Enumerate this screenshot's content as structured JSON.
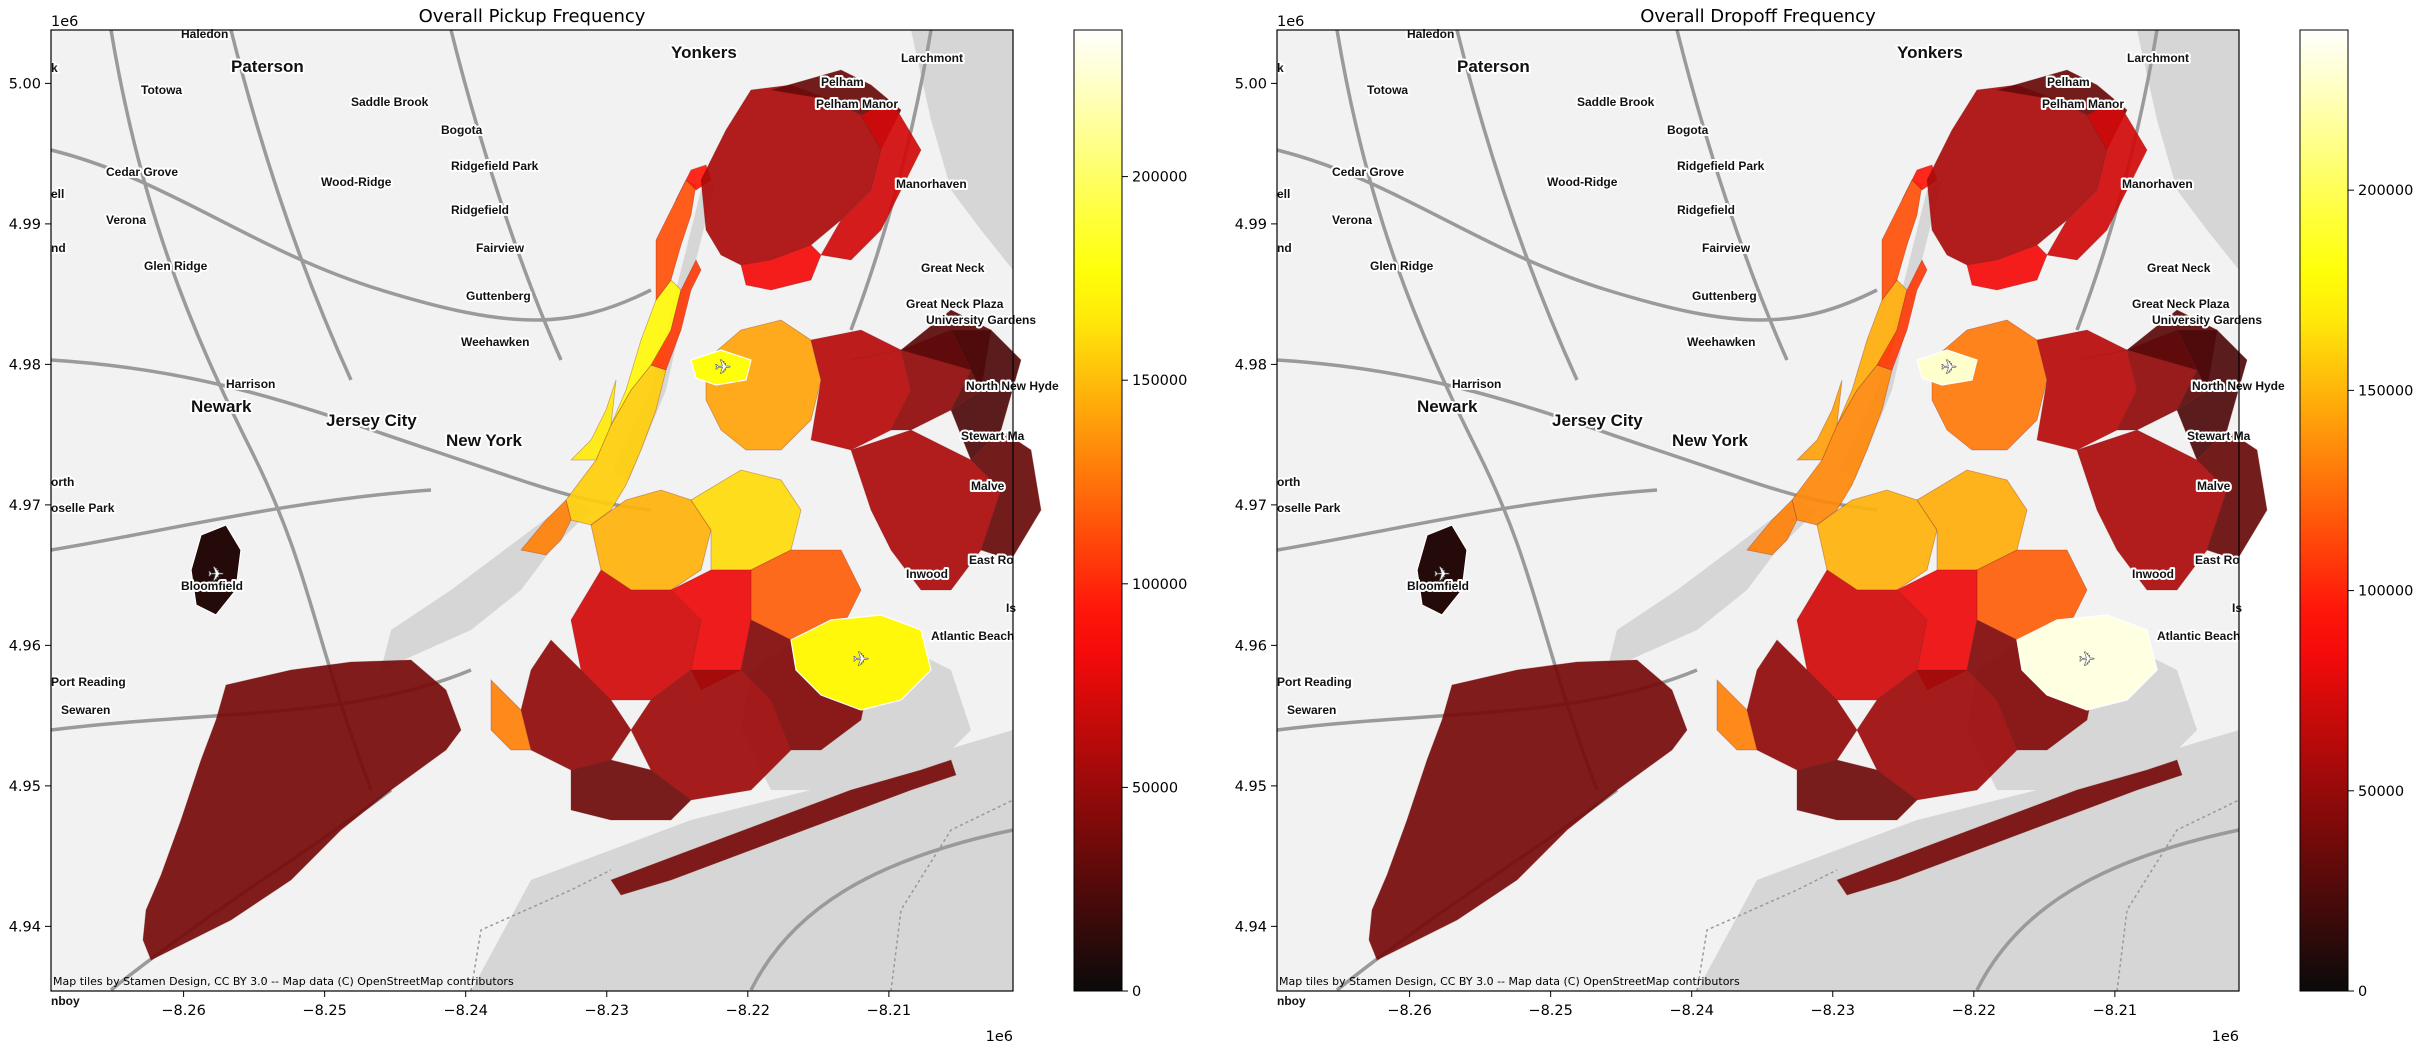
{
  "maps": [
    {
      "id": "pickup",
      "title": "Overall Pickup Frequency",
      "colorbar_max": 236000,
      "colorbar_ticks": [
        "0",
        "50000",
        "100000",
        "150000",
        "200000"
      ],
      "colorbar_tick_values": [
        0,
        50000,
        100000,
        150000,
        200000
      ],
      "airport_levels": {
        "lga": 0.75,
        "jfk": 0.72,
        "ewr": 0.04
      }
    },
    {
      "id": "dropoff",
      "title": "Overall Dropoff Frequency",
      "colorbar_max": 240000,
      "colorbar_ticks": [
        "0",
        "50000",
        "100000",
        "150000",
        "200000"
      ],
      "colorbar_tick_values": [
        0,
        50000,
        100000,
        150000,
        200000
      ],
      "airport_levels": {
        "lga": 0.95,
        "jfk": 0.97,
        "ewr": 0.04
      }
    }
  ],
  "x_ticks": [
    "−8.26",
    "−8.25",
    "−8.24",
    "−8.23",
    "−8.22",
    "−8.21"
  ],
  "x_tick_values": [
    -8.26,
    -8.25,
    -8.24,
    -8.23,
    -8.22,
    -8.21
  ],
  "y_ticks": [
    "4.94",
    "4.95",
    "4.96",
    "4.97",
    "4.98",
    "4.99",
    "5.00"
  ],
  "y_tick_values": [
    4.94,
    4.95,
    4.96,
    4.97,
    4.98,
    4.99,
    5.0
  ],
  "x_range": [
    -8.2694,
    -8.2012
  ],
  "y_range": [
    4.9354,
    5.0038
  ],
  "x_offset": "1e6",
  "y_offset": "1e6",
  "attribution": "Map tiles by Stamen Design, CC BY 3.0 -- Map data (C) OpenStreetMap contributors",
  "colormap": "hot",
  "place_labels": [
    {
      "text": "Haledon",
      "size": 12
    },
    {
      "text": "Yonkers",
      "size": 17
    },
    {
      "text": "Paterson",
      "size": 17
    },
    {
      "text": "Larchmont",
      "size": 12
    },
    {
      "text": "Pelham",
      "size": 12
    },
    {
      "text": "Pelham Manor",
      "size": 12
    },
    {
      "text": "Totowa",
      "size": 12
    },
    {
      "text": "Saddle Brook",
      "size": 12
    },
    {
      "text": "Bogota",
      "size": 12
    },
    {
      "text": "Ridgefield Park",
      "size": 12
    },
    {
      "text": "Cedar Grove",
      "size": 12
    },
    {
      "text": "Wood-Ridge",
      "size": 12
    },
    {
      "text": "ell",
      "size": 12
    },
    {
      "text": "Manorhaven",
      "size": 12
    },
    {
      "text": "Ridgefield",
      "size": 12
    },
    {
      "text": "Verona",
      "size": 12
    },
    {
      "text": "Fairview",
      "size": 12
    },
    {
      "text": "nd",
      "size": 12
    },
    {
      "text": "Glen Ridge",
      "size": 12
    },
    {
      "text": "Great Neck",
      "size": 12
    },
    {
      "text": "Guttenberg",
      "size": 12
    },
    {
      "text": "Great Neck Plaza",
      "size": 12
    },
    {
      "text": "University Gardens",
      "size": 12
    },
    {
      "text": "Weehawken",
      "size": 12
    },
    {
      "text": "Harrison",
      "size": 12
    },
    {
      "text": "North New Hyde",
      "size": 12
    },
    {
      "text": "Newark",
      "size": 17
    },
    {
      "text": "Jersey City",
      "size": 17
    },
    {
      "text": "Stewart Ma",
      "size": 12
    },
    {
      "text": "New York",
      "size": 17
    },
    {
      "text": "orth",
      "size": 12
    },
    {
      "text": "Malve",
      "size": 12
    },
    {
      "text": "oselle Park",
      "size": 12
    },
    {
      "text": "East Ro",
      "size": 12
    },
    {
      "text": "Inwood",
      "size": 12
    },
    {
      "text": "Is",
      "size": 12
    },
    {
      "text": "Bloomfield",
      "size": 12
    },
    {
      "text": "Atlantic Beach",
      "size": 12
    },
    {
      "text": "Port Reading",
      "size": 12
    },
    {
      "text": "Sewaren",
      "size": 12
    },
    {
      "text": "nboy",
      "size": 12
    },
    {
      "text": "k",
      "size": 12
    }
  ]
}
